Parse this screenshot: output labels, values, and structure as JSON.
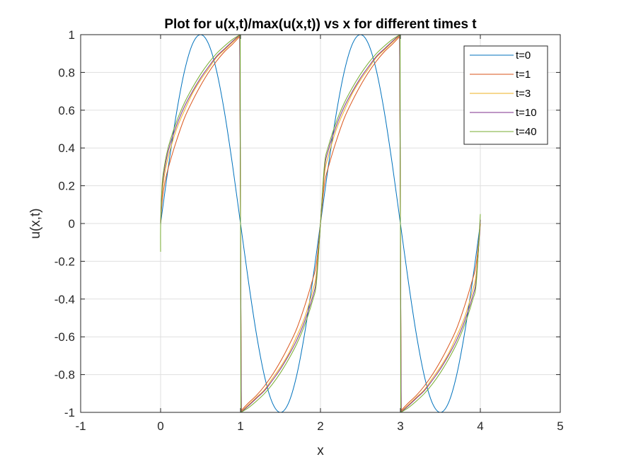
{
  "chart_data": {
    "type": "line",
    "title": "Plot for u(x,t)/max(u(x,t)) vs x for different times t",
    "xlabel": "x",
    "ylabel": "u(x,t)",
    "xlim": [
      -1,
      5
    ],
    "ylim": [
      -1,
      1
    ],
    "xticks": [
      "-1",
      "0",
      "1",
      "2",
      "3",
      "4",
      "5"
    ],
    "yticks": [
      "-1",
      "-0.8",
      "-0.6",
      "-0.4",
      "-0.2",
      "0",
      "0.2",
      "0.4",
      "0.6",
      "0.8",
      "1"
    ],
    "grid": true,
    "legend_position": "top-right",
    "series": [
      {
        "name": "t=0",
        "color": "#0072BD",
        "x": [
          0,
          0.1,
          0.2,
          0.3,
          0.4,
          0.5,
          0.6,
          0.7,
          0.8,
          0.9,
          1.0,
          1.1,
          1.2,
          1.3,
          1.4,
          1.5,
          1.6,
          1.7,
          1.8,
          1.9,
          2.0,
          2.1,
          2.2,
          2.3,
          2.4,
          2.5,
          2.6,
          2.7,
          2.8,
          2.9,
          3.0,
          3.1,
          3.2,
          3.3,
          3.4,
          3.5,
          3.6,
          3.7,
          3.8,
          3.9,
          4.0
        ],
        "y": [
          0,
          0.309,
          0.588,
          0.809,
          0.951,
          1.0,
          0.951,
          0.809,
          0.588,
          0.309,
          0,
          -0.309,
          -0.588,
          -0.809,
          -0.951,
          -1.0,
          -0.951,
          -0.809,
          -0.588,
          -0.309,
          0,
          0.309,
          0.588,
          0.809,
          0.951,
          1.0,
          0.951,
          0.809,
          0.588,
          0.309,
          0,
          -0.309,
          -0.588,
          -0.809,
          -0.951,
          -1.0,
          -0.951,
          -0.809,
          -0.588,
          -0.309,
          0
        ]
      },
      {
        "name": "t=1",
        "color": "#D95319",
        "x": [
          0,
          0.02,
          0.05,
          0.1,
          0.2,
          0.3,
          0.4,
          0.5,
          0.6,
          0.7,
          0.8,
          0.9,
          0.99,
          1.0,
          1.01,
          1.1,
          1.2,
          1.3,
          1.4,
          1.5,
          1.6,
          1.7,
          1.8,
          1.9,
          1.95,
          2.0,
          2.05,
          2.1,
          2.2,
          2.3,
          2.4,
          2.5,
          2.6,
          2.7,
          2.8,
          2.9,
          2.99,
          3.0,
          3.01,
          3.1,
          3.2,
          3.3,
          3.4,
          3.5,
          3.6,
          3.7,
          3.8,
          3.9,
          3.95,
          4.0
        ],
        "y": [
          0,
          0.12,
          0.21,
          0.3,
          0.44,
          0.56,
          0.65,
          0.73,
          0.8,
          0.86,
          0.91,
          0.95,
          0.99,
          0,
          -0.99,
          -0.95,
          -0.91,
          -0.86,
          -0.8,
          -0.73,
          -0.65,
          -0.56,
          -0.44,
          -0.3,
          -0.21,
          0,
          0.21,
          0.3,
          0.44,
          0.56,
          0.65,
          0.73,
          0.8,
          0.86,
          0.91,
          0.95,
          0.99,
          0,
          -0.99,
          -0.95,
          -0.91,
          -0.86,
          -0.8,
          -0.73,
          -0.65,
          -0.56,
          -0.44,
          -0.3,
          -0.21,
          0
        ]
      },
      {
        "name": "t=3",
        "color": "#EDB120",
        "x": [
          0,
          0.02,
          0.05,
          0.1,
          0.2,
          0.3,
          0.4,
          0.5,
          0.6,
          0.7,
          0.8,
          0.9,
          0.99,
          1.0,
          1.01,
          1.1,
          1.2,
          1.3,
          1.4,
          1.5,
          1.6,
          1.7,
          1.8,
          1.9,
          1.95,
          2.0,
          2.05,
          2.1,
          2.2,
          2.3,
          2.4,
          2.5,
          2.6,
          2.7,
          2.8,
          2.9,
          2.99,
          3.0,
          3.01,
          3.1,
          3.2,
          3.3,
          3.4,
          3.5,
          3.6,
          3.7,
          3.8,
          3.9,
          3.95,
          4.0
        ],
        "y": [
          0,
          0.16,
          0.26,
          0.36,
          0.5,
          0.6,
          0.69,
          0.76,
          0.82,
          0.88,
          0.92,
          0.96,
          0.995,
          0,
          -0.995,
          -0.96,
          -0.92,
          -0.88,
          -0.82,
          -0.76,
          -0.69,
          -0.6,
          -0.5,
          -0.36,
          -0.26,
          0,
          0.26,
          0.36,
          0.5,
          0.6,
          0.69,
          0.76,
          0.82,
          0.88,
          0.92,
          0.96,
          0.995,
          0,
          -0.995,
          -0.96,
          -0.92,
          -0.88,
          -0.82,
          -0.76,
          -0.69,
          -0.6,
          -0.5,
          -0.36,
          -0.26,
          0
        ]
      },
      {
        "name": "t=10",
        "color": "#7E2F8E",
        "x": [
          0,
          0.02,
          0.05,
          0.1,
          0.2,
          0.3,
          0.4,
          0.5,
          0.6,
          0.7,
          0.8,
          0.9,
          0.99,
          1.0,
          1.01,
          1.1,
          1.2,
          1.3,
          1.4,
          1.5,
          1.6,
          1.7,
          1.8,
          1.9,
          1.95,
          2.0,
          2.05,
          2.1,
          2.2,
          2.3,
          2.4,
          2.5,
          2.6,
          2.7,
          2.8,
          2.9,
          2.99,
          3.0,
          3.01,
          3.1,
          3.2,
          3.3,
          3.4,
          3.5,
          3.6,
          3.7,
          3.8,
          3.9,
          3.95,
          4.0
        ],
        "y": [
          0,
          0.19,
          0.29,
          0.39,
          0.52,
          0.62,
          0.7,
          0.77,
          0.83,
          0.885,
          0.925,
          0.965,
          0.998,
          0,
          -0.998,
          -0.965,
          -0.925,
          -0.885,
          -0.83,
          -0.77,
          -0.7,
          -0.62,
          -0.52,
          -0.39,
          -0.29,
          0,
          0.29,
          0.39,
          0.52,
          0.62,
          0.7,
          0.77,
          0.83,
          0.885,
          0.925,
          0.965,
          0.998,
          0,
          -0.998,
          -0.965,
          -0.925,
          -0.885,
          -0.83,
          -0.77,
          -0.7,
          -0.62,
          -0.52,
          -0.39,
          -0.29,
          0.02
        ]
      },
      {
        "name": "t=40",
        "color": "#77AC30",
        "x": [
          0,
          0.001,
          0.02,
          0.05,
          0.1,
          0.2,
          0.3,
          0.4,
          0.5,
          0.6,
          0.7,
          0.8,
          0.9,
          0.995,
          1.0,
          1.005,
          1.1,
          1.2,
          1.3,
          1.4,
          1.5,
          1.6,
          1.7,
          1.8,
          1.9,
          1.95,
          2.0,
          2.05,
          2.1,
          2.2,
          2.3,
          2.4,
          2.5,
          2.6,
          2.7,
          2.8,
          2.9,
          2.995,
          3.0,
          3.005,
          3.1,
          3.2,
          3.3,
          3.4,
          3.5,
          3.6,
          3.7,
          3.8,
          3.9,
          3.95,
          4.0
        ],
        "y": [
          -0.15,
          0,
          0.21,
          0.31,
          0.41,
          0.54,
          0.64,
          0.72,
          0.79,
          0.85,
          0.9,
          0.94,
          0.975,
          1.0,
          0,
          -1.0,
          -0.975,
          -0.94,
          -0.9,
          -0.85,
          -0.79,
          -0.72,
          -0.64,
          -0.54,
          -0.41,
          -0.31,
          0,
          0.31,
          0.41,
          0.54,
          0.64,
          0.72,
          0.79,
          0.85,
          0.9,
          0.94,
          0.975,
          1.0,
          0,
          -1.0,
          -0.975,
          -0.94,
          -0.9,
          -0.85,
          -0.79,
          -0.72,
          -0.64,
          -0.54,
          -0.41,
          -0.31,
          0.05
        ]
      }
    ]
  }
}
